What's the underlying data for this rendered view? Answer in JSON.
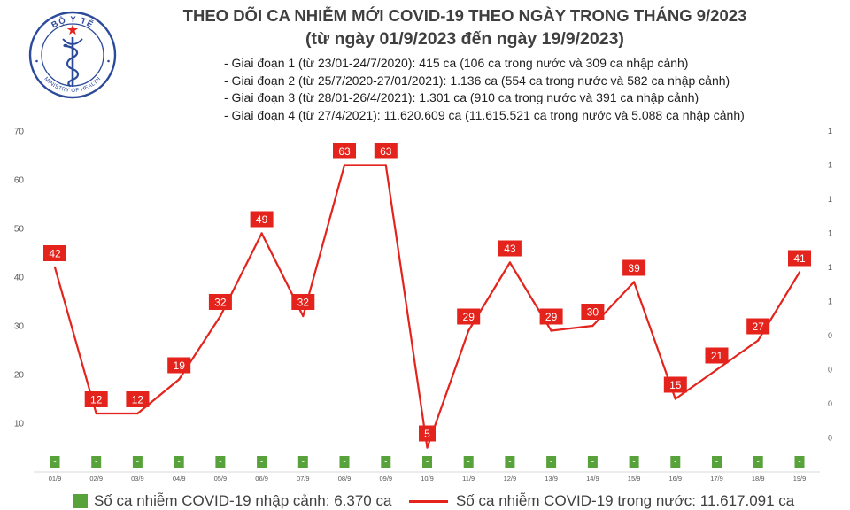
{
  "logo": {
    "top_text": "BỘ Y TẾ",
    "bottom_text": "MINISTRY OF HEALTH",
    "ring_color": "#2c4a9a",
    "star_color": "#e3231c"
  },
  "chart_data": {
    "type": "line",
    "title": "THEO DÕI CA NHIỄM MỚI COVID-19 THEO NGÀY TRONG THÁNG 9/2023",
    "subtitle": "(từ ngày 01/9/2023 đến ngày 19/9/2023)",
    "annotations": [
      "- Giai đoạn 1 (từ 23/01-24/7/2020): 415 ca (106 ca trong nước và 309 ca nhập cảnh)",
      "- Giai đoạn 2 (từ 25/7/2020-27/01/2021): 1.136 ca (554 ca trong nước và 582 ca nhập cảnh)",
      "- Giai đoạn 3 (từ 28/01-26/4/2021): 1.301 ca (910 ca trong nước và 391 ca nhập cảnh)",
      "- Giai đoạn 4 (từ 27/4/2021): 11.620.609 ca (11.615.521 ca trong nước và 5.088 ca nhập cảnh)"
    ],
    "categories": [
      "01/9",
      "02/9",
      "03/9",
      "04/9",
      "05/9",
      "06/9",
      "07/9",
      "08/9",
      "09/9",
      "10/9",
      "11/9",
      "12/9",
      "13/9",
      "14/9",
      "15/9",
      "16/9",
      "17/9",
      "18/9",
      "19/9"
    ],
    "series": [
      {
        "name": "Số ca nhiễm COVID-19 nhập cảnh: 6.370 ca",
        "type": "bar",
        "values": [
          0,
          0,
          0,
          0,
          0,
          0,
          0,
          0,
          0,
          0,
          0,
          0,
          0,
          0,
          0,
          0,
          0,
          0,
          0
        ],
        "labels": [
          "-",
          "-",
          "-",
          "-",
          "-",
          "-",
          "-",
          "-",
          "-",
          "-",
          "-",
          "-",
          "-",
          "-",
          "-",
          "-",
          "-",
          "-",
          "-"
        ],
        "color": "#58a23b"
      },
      {
        "name": "Số ca nhiễm COVID-19 trong nước: 11.617.091 ca",
        "type": "line",
        "values": [
          42,
          12,
          12,
          19,
          32,
          49,
          32,
          63,
          63,
          5,
          29,
          43,
          29,
          30,
          39,
          15,
          21,
          27,
          41
        ],
        "color": "#e3231c"
      }
    ],
    "y_left": {
      "range": [
        0,
        70
      ],
      "ticks": [
        10,
        20,
        30,
        40,
        50,
        60,
        70
      ]
    },
    "y_right": {
      "range": [
        0,
        1
      ],
      "tick_labels": [
        "1",
        "1",
        "1",
        "1",
        "1",
        "1",
        "0",
        "0",
        "0",
        "0"
      ]
    },
    "grid": false,
    "legend": "bottom"
  }
}
